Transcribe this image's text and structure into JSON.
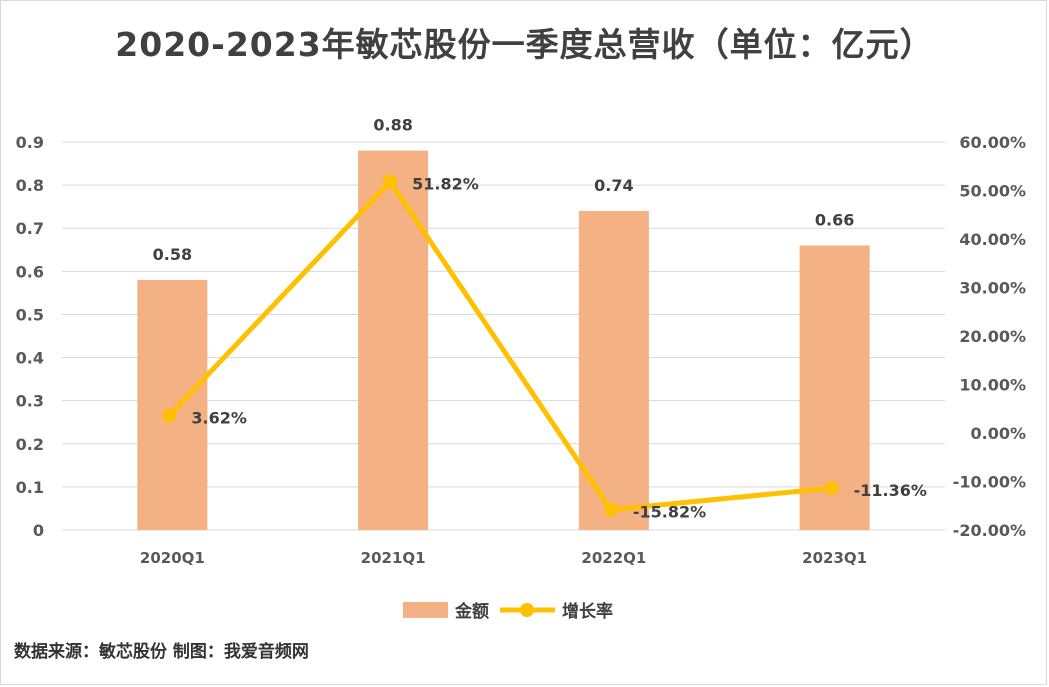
{
  "title": "2020-2023年敏芯股份一季度总营收（单位：亿元）",
  "source_note": "数据来源：敏芯股份  制图：我爱音频网",
  "colors": {
    "bar": "#F4B183",
    "line": "#FFC000",
    "grid": "#d9d9d9",
    "text": "#595959"
  },
  "chart_data": {
    "type": "bar",
    "categories": [
      "2020Q1",
      "2021Q1",
      "2022Q1",
      "2023Q1"
    ],
    "series": [
      {
        "name": "金额",
        "type": "bar",
        "axis": "left",
        "values": [
          0.58,
          0.88,
          0.74,
          0.66
        ],
        "labels": [
          "0.58",
          "0.88",
          "0.74",
          "0.66"
        ]
      },
      {
        "name": "增长率",
        "type": "line",
        "axis": "right",
        "values": [
          3.62,
          51.82,
          -15.82,
          -11.36
        ],
        "labels": [
          "3.62%",
          "51.82%",
          "-15.82%",
          "-11.36%"
        ]
      }
    ],
    "y_left": {
      "ylim": [
        0,
        0.9
      ],
      "ticks": [
        "0",
        "0.1",
        "0.2",
        "0.3",
        "0.4",
        "0.5",
        "0.6",
        "0.7",
        "0.8",
        "0.9"
      ]
    },
    "y_right": {
      "ylim": [
        -20,
        60
      ],
      "ticks": [
        "-20.00%",
        "-10.00%",
        "0.00%",
        "10.00%",
        "20.00%",
        "30.00%",
        "40.00%",
        "50.00%",
        "60.00%"
      ]
    },
    "grid": true,
    "legend": "bottom"
  }
}
